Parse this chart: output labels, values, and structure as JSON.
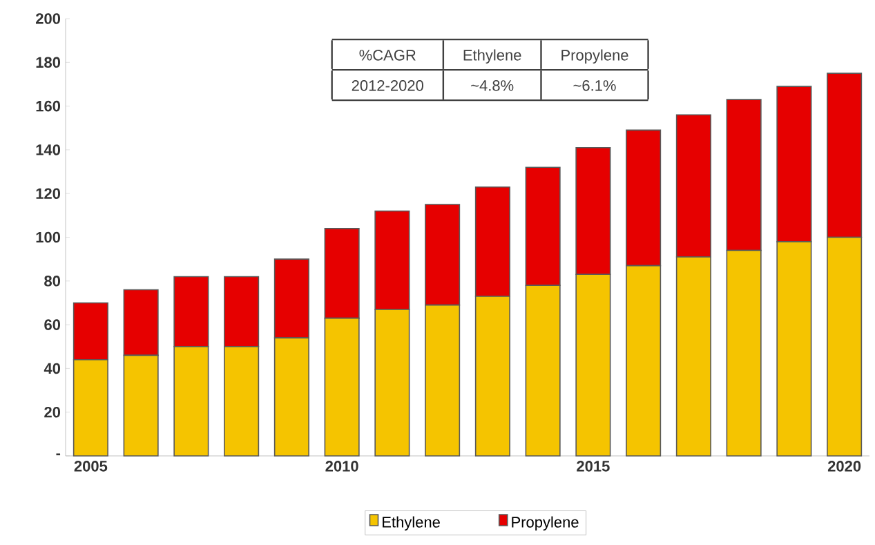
{
  "chart_data": {
    "type": "bar",
    "stacked": true,
    "categories": [
      "2005",
      null,
      null,
      null,
      null,
      "2010",
      null,
      null,
      null,
      null,
      "2015",
      null,
      null,
      null,
      null,
      "2020"
    ],
    "series": [
      {
        "name": "Ethylene",
        "color": "#f5c400",
        "values": [
          44,
          46,
          50,
          50,
          54,
          63,
          67,
          69,
          73,
          78,
          83,
          87,
          91,
          94,
          98,
          100
        ]
      },
      {
        "name": "Propylene",
        "color": "#e60000",
        "values": [
          26,
          30,
          32,
          32,
          36,
          41,
          45,
          46,
          50,
          54,
          58,
          62,
          65,
          69,
          71,
          75
        ]
      }
    ],
    "ylim": [
      0,
      200
    ],
    "yticks": [
      {
        "value": 0,
        "label": "-"
      },
      20,
      40,
      60,
      80,
      100,
      120,
      140,
      160,
      180,
      200
    ],
    "legend": "bottom",
    "annotations": [
      "%CAGR",
      "Ethylene",
      "Propylene",
      "2012-2020",
      "~4.8%",
      "~6.1%"
    ]
  }
}
